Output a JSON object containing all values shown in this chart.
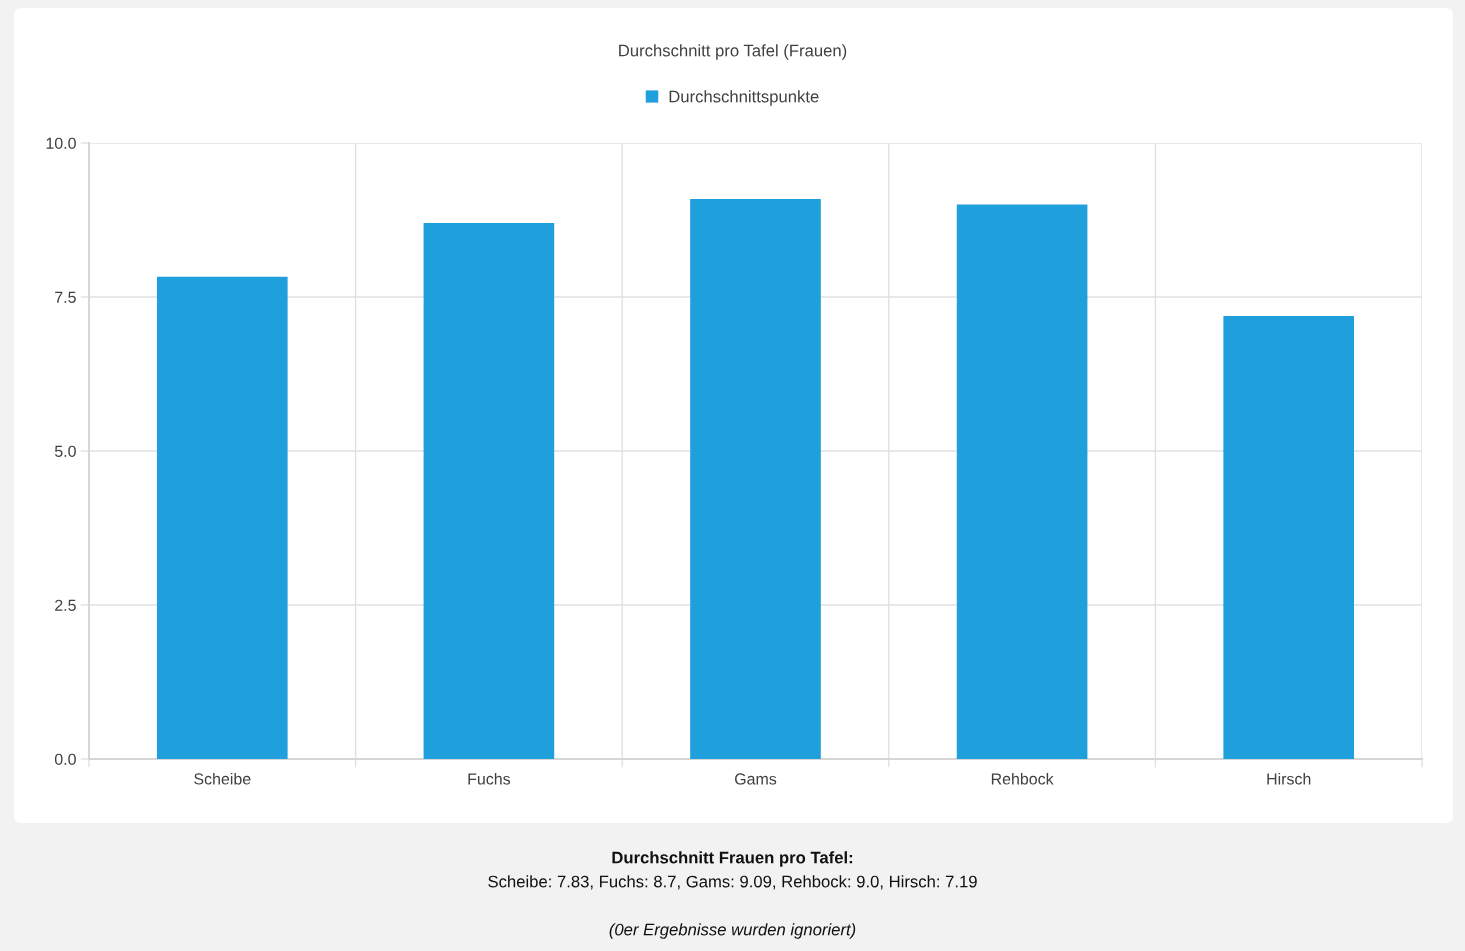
{
  "chart_data": {
    "type": "bar",
    "title": "Durchschnitt pro Tafel (Frauen)",
    "categories": [
      "Scheibe",
      "Fuchs",
      "Gams",
      "Rehbock",
      "Hirsch"
    ],
    "series": [
      {
        "name": "Durchschnittspunkte",
        "color": "#1f9fdc",
        "values": [
          7.83,
          8.7,
          9.09,
          9.0,
          7.19
        ]
      }
    ],
    "ylim": [
      0,
      10
    ],
    "yticks": [
      {
        "value": 0,
        "label": "0.0"
      },
      {
        "value": 2.5,
        "label": "2.5"
      },
      {
        "value": 5,
        "label": "5.0"
      },
      {
        "value": 7.5,
        "label": "7.5"
      },
      {
        "value": 10,
        "label": "10.0"
      }
    ],
    "grid": true,
    "legend": "top",
    "annotations": [
      "Durchschnitt Frauen pro Tafel:",
      "Scheibe: 7.83, Fuchs: 8.7, Gams: 9.09, Rehbock: 9.0, Hirsch: 7.19",
      "(0er Ergebnisse wurden ignoriert)"
    ]
  }
}
